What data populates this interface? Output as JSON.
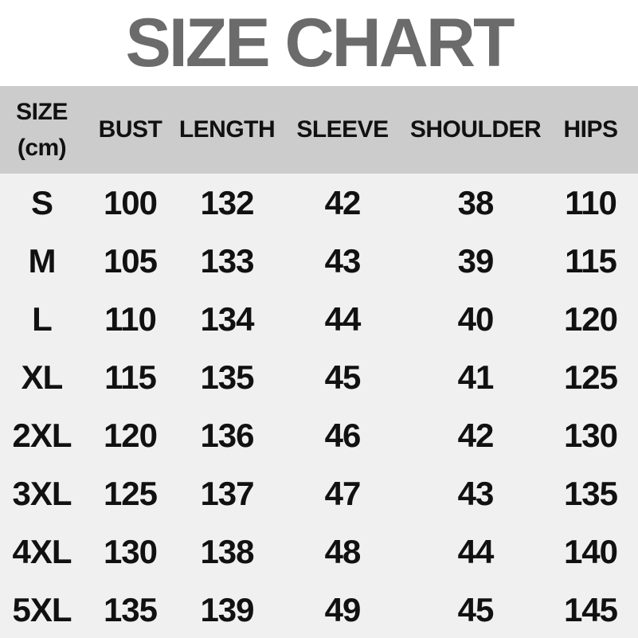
{
  "title": "SIZE CHART",
  "colors": {
    "title_gray": "#6b6b6b",
    "header_bg": "#cccccc",
    "body_bg": "#f0f0f0",
    "text_color": "#111111"
  },
  "table": {
    "unit_header_line1": "SIZE",
    "unit_header_line2": "(cm)",
    "columns": [
      "BUST",
      "LENGTH",
      "SLEEVE",
      "SHOULDER",
      "HIPS"
    ],
    "rows": [
      {
        "size": "S",
        "values": [
          100,
          132,
          42,
          38,
          110
        ]
      },
      {
        "size": "M",
        "values": [
          105,
          133,
          43,
          39,
          115
        ]
      },
      {
        "size": "L",
        "values": [
          110,
          134,
          44,
          40,
          120
        ]
      },
      {
        "size": "XL",
        "values": [
          115,
          135,
          45,
          41,
          125
        ]
      },
      {
        "size": "2XL",
        "values": [
          120,
          136,
          46,
          42,
          130
        ]
      },
      {
        "size": "3XL",
        "values": [
          125,
          137,
          47,
          43,
          135
        ]
      },
      {
        "size": "4XL",
        "values": [
          130,
          138,
          48,
          44,
          140
        ]
      },
      {
        "size": "5XL",
        "values": [
          135,
          139,
          49,
          45,
          145
        ]
      }
    ]
  },
  "chart_data": {
    "type": "table",
    "title": "SIZE CHART",
    "unit": "cm",
    "columns": [
      "SIZE (cm)",
      "BUST",
      "LENGTH",
      "SLEEVE",
      "SHOULDER",
      "HIPS"
    ],
    "rows": [
      [
        "S",
        100,
        132,
        42,
        38,
        110
      ],
      [
        "M",
        105,
        133,
        43,
        39,
        115
      ],
      [
        "L",
        110,
        134,
        44,
        40,
        120
      ],
      [
        "XL",
        115,
        135,
        45,
        41,
        125
      ],
      [
        "2XL",
        120,
        136,
        46,
        42,
        130
      ],
      [
        "3XL",
        125,
        137,
        47,
        43,
        135
      ],
      [
        "4XL",
        130,
        138,
        48,
        44,
        140
      ],
      [
        "5XL",
        135,
        139,
        49,
        45,
        145
      ]
    ]
  }
}
